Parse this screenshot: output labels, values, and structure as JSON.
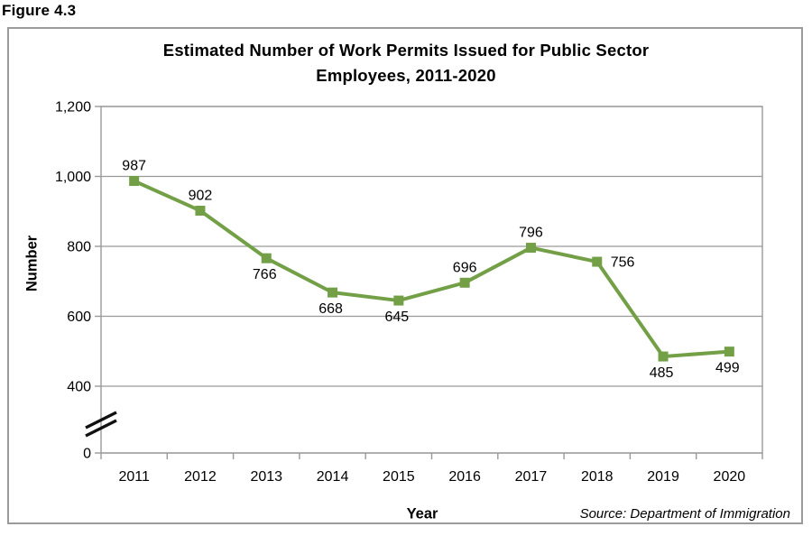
{
  "figure_label": "Figure 4.3",
  "chart_data": {
    "type": "line",
    "title": "Estimated Number of Work Permits Issued for Public Sector Employees, 2011-2020",
    "title_lines": [
      "Estimated Number of Work Permits Issued for Public Sector",
      "Employees, 2011-2020"
    ],
    "xlabel": "Year",
    "ylabel": "Number",
    "source_note": "Source: Department of Immigration",
    "categories": [
      "2011",
      "2012",
      "2013",
      "2014",
      "2015",
      "2016",
      "2017",
      "2018",
      "2019",
      "2020"
    ],
    "values": [
      987,
      902,
      766,
      668,
      645,
      696,
      796,
      756,
      485,
      499
    ],
    "data_labels": [
      "987",
      "902",
      "766",
      "668",
      "645",
      "696",
      "796",
      "756",
      "485",
      "499"
    ],
    "label_positions": [
      "above",
      "above",
      "below",
      "below",
      "below",
      "above",
      "above",
      "right",
      "below",
      "below"
    ],
    "y_ticks": [
      {
        "label": "1,200",
        "value": 1200
      },
      {
        "label": "1,000",
        "value": 1000
      },
      {
        "label": "800",
        "value": 800
      },
      {
        "label": "600",
        "value": 600
      },
      {
        "label": "400",
        "value": 400
      },
      {
        "label": "0",
        "value": 0
      }
    ],
    "ylim": [
      0,
      1200
    ],
    "axis_break": true,
    "grid": true,
    "legend": false,
    "marker": "square",
    "colors": {
      "line": "#73A047",
      "marker": "#73A047",
      "grid": "#999999",
      "axis": "#999999",
      "break_mark": "#111111",
      "text": "#000000",
      "frame": "#9b9b9b"
    }
  }
}
